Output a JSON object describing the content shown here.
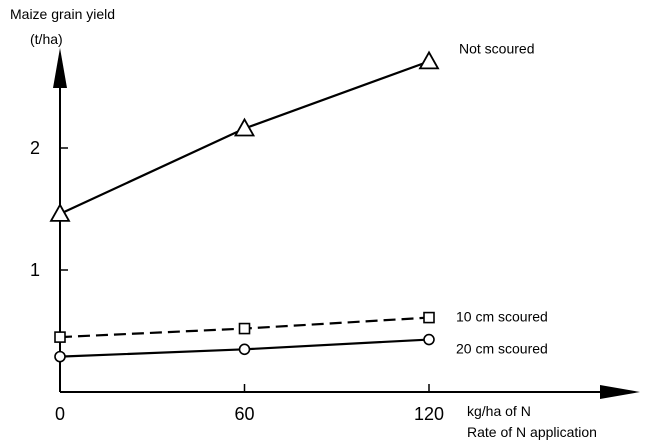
{
  "chart_data": {
    "type": "line",
    "ylabel_line1": "Maize grain yield",
    "ylabel_line2": "(t/ha)",
    "xlabel_line1": "kg/ha of N",
    "xlabel_line2": "Rate of N application",
    "x_ticks": [
      "0",
      "60",
      "120"
    ],
    "y_ticks": [
      "1",
      "2"
    ],
    "x": [
      0,
      60,
      120
    ],
    "xlim": [
      0,
      185
    ],
    "ylim": [
      0,
      2.8
    ],
    "grid": false,
    "legend": "labels at line ends",
    "series": [
      {
        "name": "Not scoured",
        "values": [
          1.46,
          2.16,
          2.71
        ],
        "marker": "triangle",
        "dash": false
      },
      {
        "name": "10 cm scoured",
        "values": [
          0.45,
          0.52,
          0.61
        ],
        "marker": "square",
        "dash": true
      },
      {
        "name": "20 cm scoured",
        "values": [
          0.29,
          0.35,
          0.43
        ],
        "marker": "circle",
        "dash": false
      }
    ]
  }
}
